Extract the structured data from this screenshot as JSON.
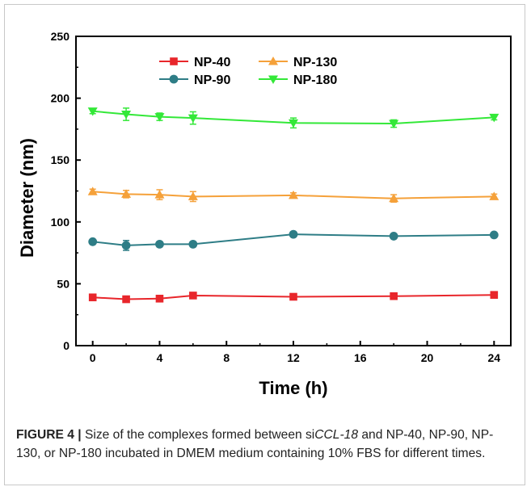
{
  "chart_data": {
    "type": "line",
    "title": "",
    "xlabel": "Time (h)",
    "ylabel": "Diameter (nm)",
    "xlim": [
      -1,
      25
    ],
    "ylim": [
      0,
      250
    ],
    "xticks": [
      0,
      4,
      8,
      12,
      16,
      20,
      24
    ],
    "yticks": [
      0,
      50,
      100,
      150,
      200,
      250
    ],
    "grid": false,
    "legend_position": "top-left",
    "series": [
      {
        "name": "NP-40",
        "color": "#e8262b",
        "marker": "square",
        "x": [
          0,
          2,
          4,
          6,
          12,
          18,
          24
        ],
        "y": [
          39,
          37.5,
          38,
          40.5,
          39.5,
          40,
          41
        ],
        "err": [
          1,
          1,
          1,
          1,
          1,
          1,
          1
        ]
      },
      {
        "name": "NP-90",
        "color": "#2e7d86",
        "marker": "circle",
        "x": [
          0,
          2,
          4,
          6,
          12,
          18,
          24
        ],
        "y": [
          84,
          81,
          82,
          82,
          90,
          88.5,
          89.5
        ],
        "err": [
          1.5,
          4,
          2,
          2,
          1.5,
          1.5,
          1.5
        ]
      },
      {
        "name": "NP-130",
        "color": "#f5a13a",
        "marker": "triangle-up",
        "x": [
          0,
          2,
          4,
          6,
          12,
          18,
          24
        ],
        "y": [
          124.5,
          122.5,
          122,
          120.5,
          121.5,
          119,
          120.5
        ],
        "err": [
          2,
          3,
          4,
          4,
          2,
          3,
          2
        ]
      },
      {
        "name": "NP-180",
        "color": "#33e838",
        "marker": "triangle-down",
        "x": [
          0,
          2,
          4,
          6,
          12,
          18,
          24
        ],
        "y": [
          189.5,
          187,
          185,
          184,
          180,
          179.5,
          184.5
        ],
        "err": [
          2,
          5,
          3,
          5,
          4,
          3,
          2
        ]
      }
    ]
  },
  "caption": {
    "label": "FIGURE 4",
    "separator": "|",
    "text_before": " Size of the complexes formed between si",
    "gene": "CCL-18",
    "text_after": " and NP-40, NP-90, NP-130, or NP-180 incubated in DMEM medium containing 10% FBS for different times."
  }
}
